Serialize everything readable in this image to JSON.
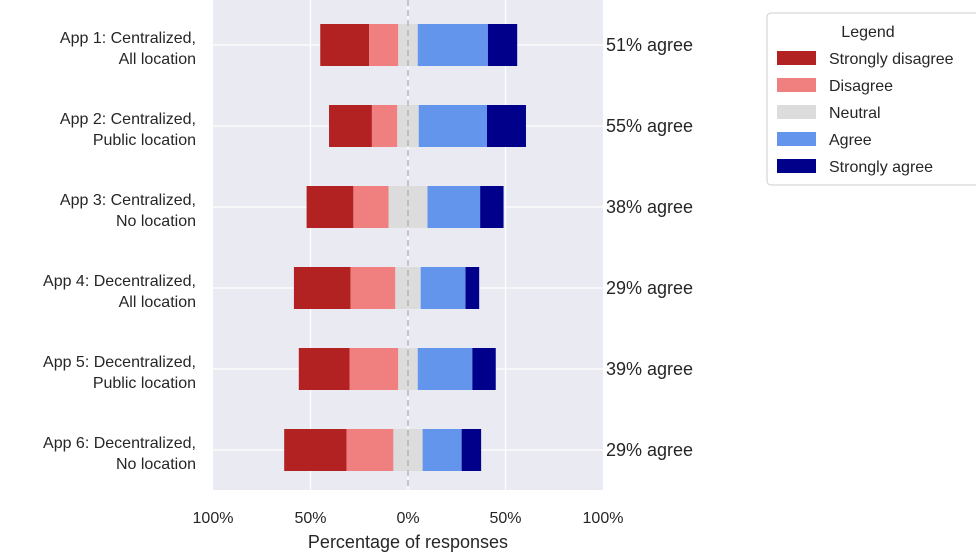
{
  "chart_data": {
    "type": "bar",
    "orientation": "horizontal-diverging",
    "xlabel": "Percentage of responses",
    "x_ticks": [
      "100%",
      "50%",
      "0%",
      "50%",
      "100%"
    ],
    "xlim": [
      -100,
      100
    ],
    "grid": true,
    "legend_placement": "outside right",
    "categories": [
      [
        "App 1: Centralized,",
        "All location"
      ],
      [
        "App 2: Centralized,",
        "Public location"
      ],
      [
        "App 3: Centralized,",
        "No location"
      ],
      [
        "App 4: Decentralized,",
        "All location"
      ],
      [
        "App 5: Decentralized,",
        "Public location"
      ],
      [
        "App 6: Decentralized,",
        "No location"
      ]
    ],
    "series": [
      {
        "name": "Strongly disagree",
        "color": "#b22222",
        "values": [
          25,
          22,
          24,
          29,
          26,
          32
        ]
      },
      {
        "name": "Disagree",
        "color": "#f08080",
        "values": [
          15,
          13,
          18,
          23,
          25,
          24
        ]
      },
      {
        "name": "Neutral",
        "color": "#dcdcdc",
        "values": [
          10,
          11,
          20,
          13,
          10,
          15
        ]
      },
      {
        "name": "Agree",
        "color": "#6495ed",
        "values": [
          36,
          35,
          27,
          23,
          28,
          20
        ]
      },
      {
        "name": "Strongly agree",
        "color": "#00008b",
        "values": [
          15,
          20,
          12,
          7,
          12,
          10
        ]
      }
    ],
    "agree_labels": [
      "51% agree",
      "55% agree",
      "38% agree",
      "29% agree",
      "39% agree",
      "29% agree"
    ],
    "legend_title": "Legend",
    "colors": {
      "plot_background": "#eaeaf2",
      "grid": "#ffffff",
      "zero_line": "#b0b0b0"
    }
  }
}
